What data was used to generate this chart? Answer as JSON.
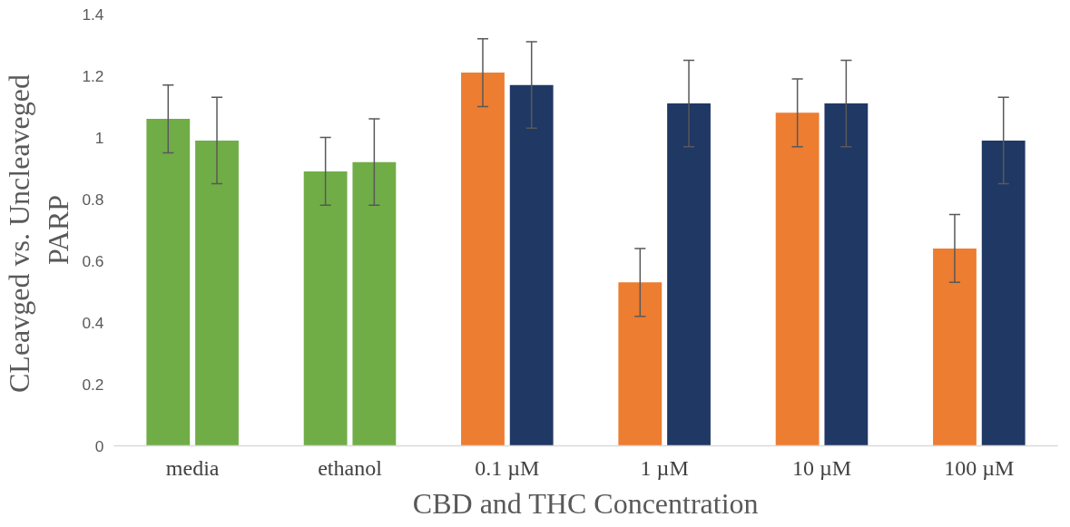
{
  "chart_data": {
    "type": "bar",
    "xlabel": "CBD and THC Concentration",
    "ylabel": "CLeavged  vs. Uncleaveged\nPARP",
    "categories": [
      "media",
      "ethanol",
      "0.1 µM",
      "1 µM",
      "10 µM",
      "100 µM"
    ],
    "series": [
      {
        "colors": [
          "#70ad47",
          "#70ad47",
          "#ed7d31",
          "#ed7d31",
          "#ed7d31",
          "#ed7d31"
        ],
        "values": [
          1.06,
          0.89,
          1.21,
          0.53,
          1.08,
          0.64
        ],
        "errors": [
          0.11,
          0.11,
          0.11,
          0.11,
          0.11,
          0.11
        ]
      },
      {
        "colors": [
          "#70ad47",
          "#70ad47",
          "#203864",
          "#203864",
          "#203864",
          "#203864"
        ],
        "values": [
          0.99,
          0.92,
          1.17,
          1.11,
          1.11,
          0.99
        ],
        "errors": [
          0.14,
          0.14,
          0.14,
          0.14,
          0.14,
          0.14
        ]
      }
    ],
    "ylim": [
      0,
      1.4
    ],
    "yticks": [
      0,
      0.2,
      0.4,
      0.6,
      0.8,
      1,
      1.2,
      1.4
    ],
    "grid": false
  }
}
